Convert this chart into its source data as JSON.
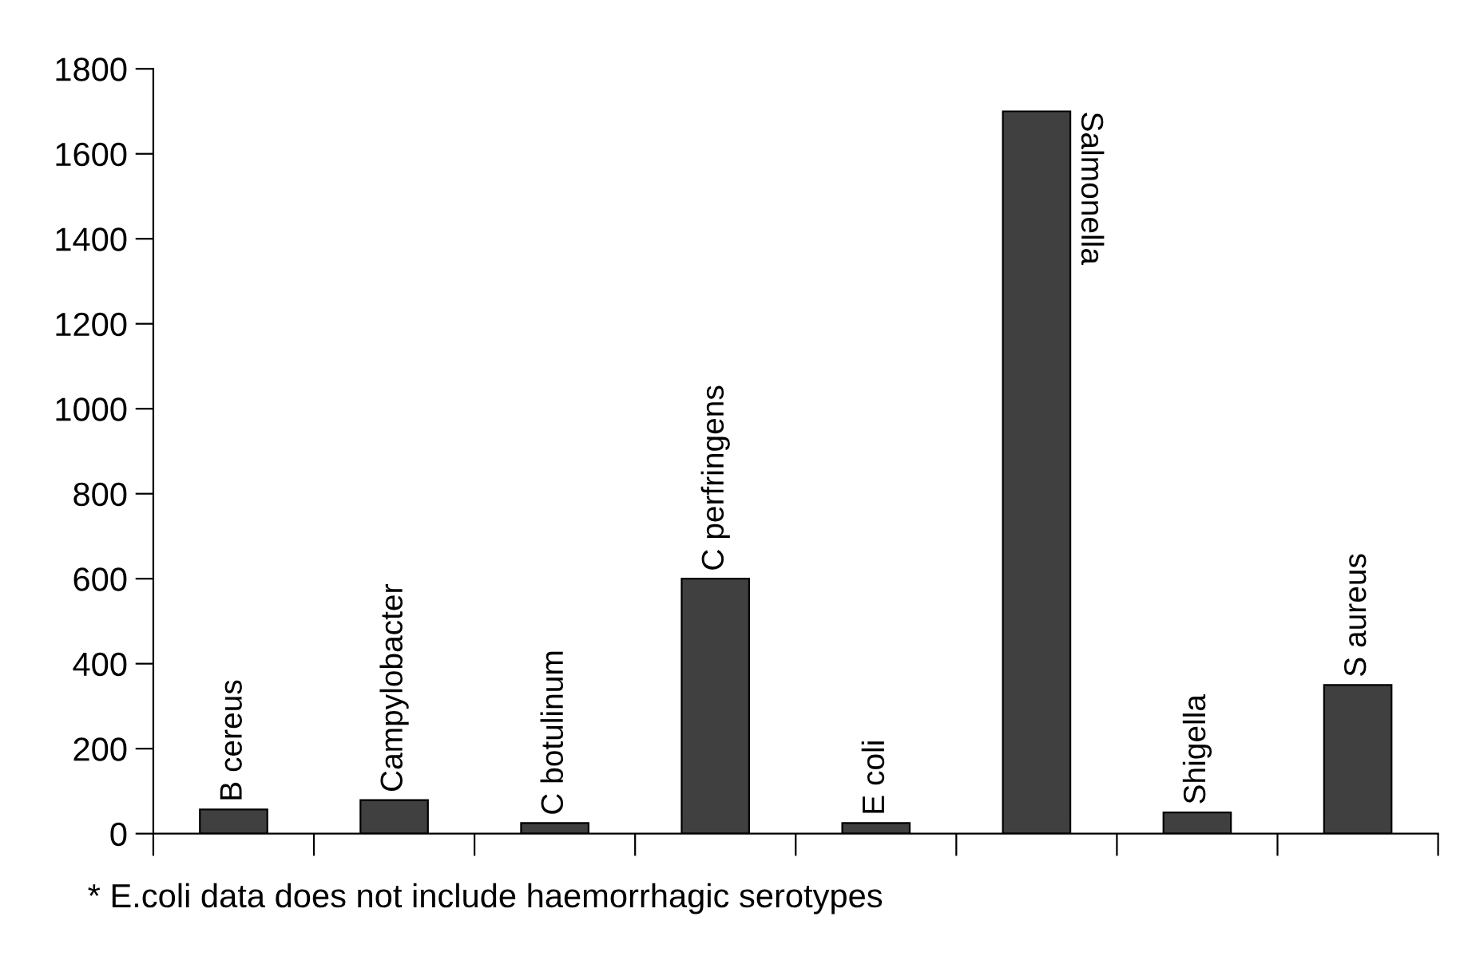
{
  "chart_data": {
    "type": "bar",
    "categories": [
      "B cereus",
      "Campylobacter",
      "C botulinum",
      "C perfringens",
      "E coli",
      "Salmonella",
      "Shigella",
      "S aureus"
    ],
    "values": [
      57,
      79,
      25,
      600,
      25,
      1700,
      50,
      350
    ],
    "color": "#404040",
    "ylim": [
      0,
      1800
    ],
    "yticks": [
      0,
      200,
      400,
      600,
      800,
      1000,
      1200,
      1400,
      1600,
      1800
    ],
    "grid": false,
    "legend": false,
    "annotations": [
      "* E.coli data does not include haemorrhagic serotypes"
    ]
  }
}
